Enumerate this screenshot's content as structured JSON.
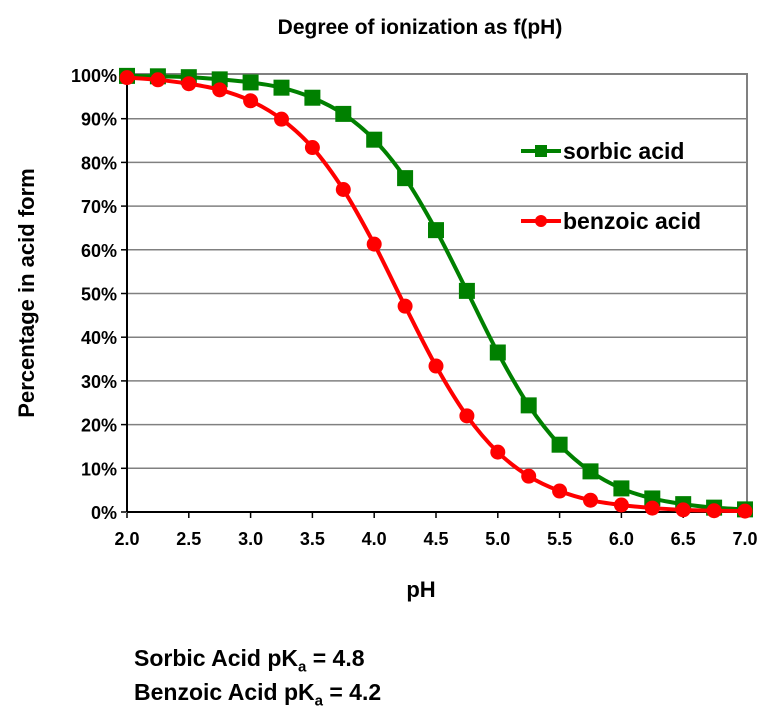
{
  "chart_data": {
    "type": "line",
    "title": "Degree of ionization as f(pH)",
    "xlabel": "pH",
    "ylabel": "Percentage in acid form",
    "xlim": [
      2.0,
      7.0
    ],
    "ylim": [
      0,
      100
    ],
    "x_ticks": [
      "2.0",
      "2.5",
      "3.0",
      "3.5",
      "4.0",
      "4.5",
      "5.0",
      "5.5",
      "6.0",
      "6.5",
      "7.0"
    ],
    "y_ticks": [
      "0%",
      "10%",
      "20%",
      "30%",
      "40%",
      "50%",
      "60%",
      "70%",
      "80%",
      "90%",
      "100%"
    ],
    "grid": true,
    "legend": "right",
    "x": [
      2.0,
      2.25,
      2.5,
      2.75,
      3.0,
      3.25,
      3.5,
      3.75,
      4.0,
      4.25,
      4.5,
      4.75,
      5.0,
      5.25,
      5.5,
      5.75,
      6.0,
      6.25,
      6.5,
      6.75,
      7.0
    ],
    "series": [
      {
        "name": "sorbic acid",
        "color": "#008000",
        "marker": "square",
        "values": [
          99.8,
          99.7,
          99.5,
          99.0,
          98.3,
          97.1,
          94.8,
          91.1,
          85.2,
          76.4,
          64.5,
          50.6,
          36.5,
          24.4,
          15.4,
          9.3,
          5.4,
          3.1,
          1.8,
          1.0,
          0.6
        ]
      },
      {
        "name": "benzoic acid",
        "color": "#ff0000",
        "marker": "circle",
        "values": [
          99.4,
          98.9,
          98.0,
          96.6,
          94.1,
          89.9,
          83.4,
          73.8,
          61.3,
          47.1,
          33.4,
          22.0,
          13.7,
          8.2,
          4.8,
          2.7,
          1.6,
          0.9,
          0.5,
          0.3,
          0.2
        ]
      }
    ]
  },
  "notes": {
    "sorbic_prefix": "Sorbic Acid pK",
    "sorbic_sub": "a",
    "sorbic_suffix": " = 4.8",
    "benzoic_prefix": "Benzoic Acid pK",
    "benzoic_sub": "a",
    "benzoic_suffix": " = 4.2"
  }
}
